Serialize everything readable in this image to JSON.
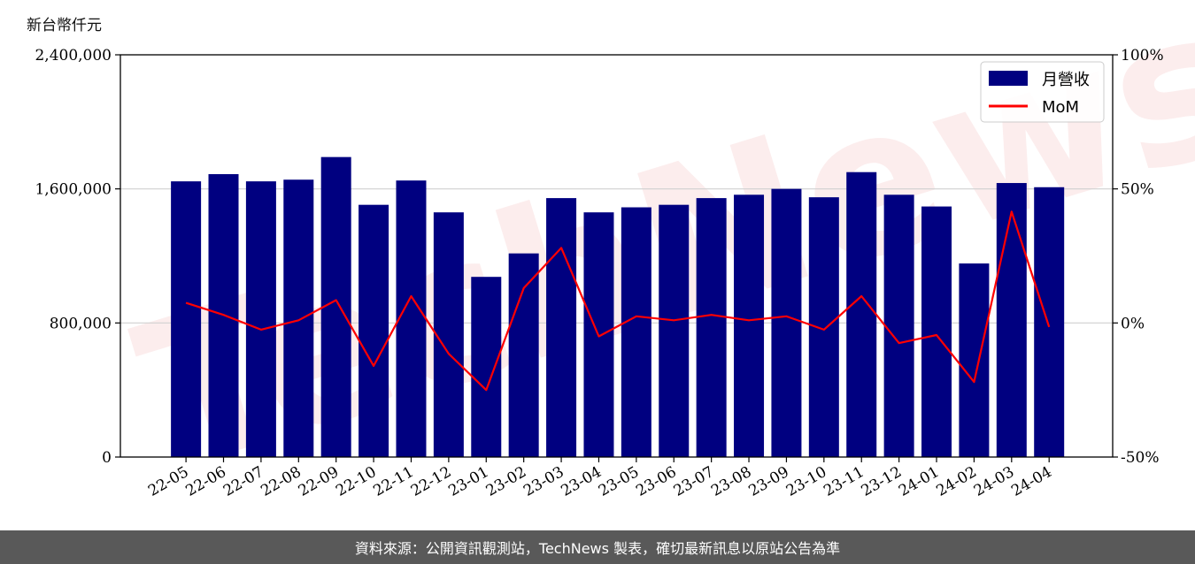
{
  "unit_label": "新台幣仟元",
  "footer_text": "資料來源：公開資訊觀測站，TechNews 製表，確切最新訊息以原站公告為準",
  "watermark_text": "TechNews",
  "chart_data": {
    "type": "bar",
    "categories": [
      "22-05",
      "22-06",
      "22-07",
      "22-08",
      "22-09",
      "22-10",
      "22-11",
      "22-12",
      "23-01",
      "23-02",
      "23-03",
      "23-04",
      "23-05",
      "23-06",
      "23-07",
      "23-08",
      "23-09",
      "23-10",
      "23-11",
      "23-12",
      "24-01",
      "24-02",
      "24-03",
      "24-04"
    ],
    "series": [
      {
        "name": "月營收",
        "type": "bar",
        "axis": "left",
        "color": "#000080",
        "values": [
          1645000,
          1688000,
          1645000,
          1655000,
          1790000,
          1505000,
          1650000,
          1460000,
          1075000,
          1215000,
          1545000,
          1460000,
          1490000,
          1505000,
          1545000,
          1565000,
          1600000,
          1550000,
          1700000,
          1565000,
          1495000,
          1155000,
          1635000,
          1610000
        ]
      },
      {
        "name": "MoM",
        "type": "line",
        "axis": "right",
        "color": "#ff0000",
        "unit": "%",
        "values": [
          7.5,
          3,
          -2.5,
          1,
          8.5,
          -16,
          10,
          -11.5,
          -25,
          13,
          28,
          -5,
          2.5,
          1,
          3,
          1,
          2.5,
          -2.5,
          10,
          -7.5,
          -4.5,
          -22,
          41.5,
          -1.5
        ]
      }
    ],
    "y_left": {
      "ylim": [
        0,
        2400000
      ],
      "ticks": [
        0,
        800000,
        1600000,
        2400000
      ],
      "tick_labels": [
        "0",
        "800,000",
        "1,600,000",
        "2,400,000"
      ]
    },
    "y_right": {
      "ylim": [
        -50,
        100
      ],
      "ticks": [
        -50,
        0,
        50,
        100
      ],
      "tick_labels": [
        "-50%",
        "0%",
        "50%",
        "100%"
      ]
    },
    "grid": "horizontal",
    "legend": {
      "position": "top-right",
      "entries": [
        "月營收",
        "MoM"
      ]
    },
    "xtick_rotation": -30
  }
}
